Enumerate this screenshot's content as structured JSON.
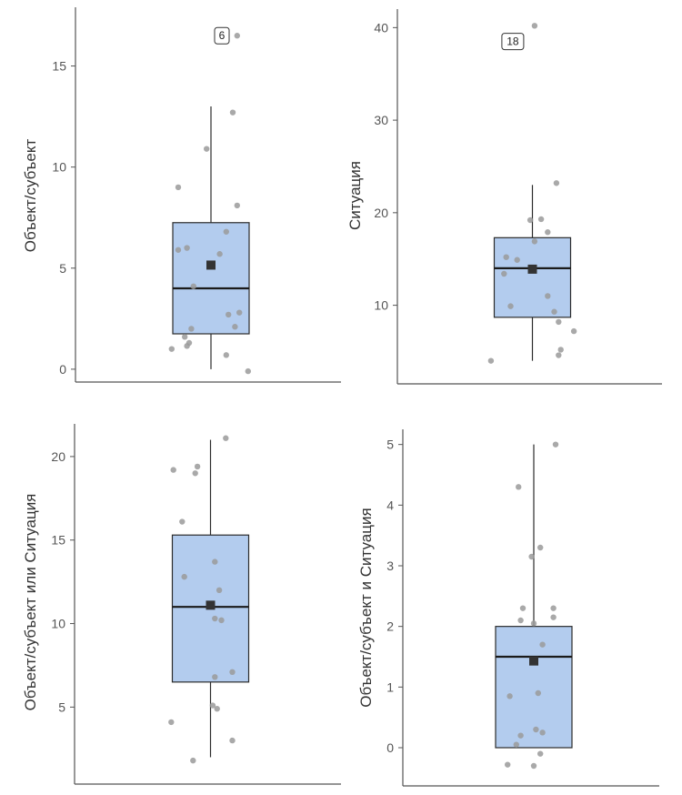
{
  "chart_data": [
    {
      "type": "box",
      "ylabel": "Объект/субъект",
      "ylim": [
        -0.5,
        17.5
      ],
      "yticks": [
        0,
        5,
        10,
        15
      ],
      "box": {
        "min": 0,
        "q1": 1.75,
        "median": 4,
        "mean": 5.15,
        "q3": 7.25,
        "max": 13
      },
      "points": [
        [
          0.6,
          16.5
        ],
        [
          0.5,
          12.7
        ],
        [
          -0.1,
          10.9
        ],
        [
          0.6,
          8.1
        ],
        [
          -0.75,
          9.0
        ],
        [
          0.35,
          6.8
        ],
        [
          -0.75,
          5.9
        ],
        [
          -0.55,
          6.0
        ],
        [
          0.2,
          5.7
        ],
        [
          -0.4,
          4.1
        ],
        [
          0.65,
          2.8
        ],
        [
          0.4,
          2.7
        ],
        [
          -0.45,
          2.0
        ],
        [
          0.55,
          2.1
        ],
        [
          -0.9,
          1.0
        ],
        [
          -0.5,
          1.3
        ],
        [
          -0.55,
          1.15
        ],
        [
          -0.6,
          1.6
        ],
        [
          0.35,
          0.7
        ],
        [
          0.85,
          -0.1
        ]
      ],
      "outlier_annotation": {
        "label": "6",
        "x": 0.25,
        "y": 16.5
      }
    },
    {
      "type": "box",
      "ylabel": "Ситуация",
      "ylim": [
        2,
        42
      ],
      "yticks": [
        10,
        20,
        30,
        40
      ],
      "box": {
        "min": 4,
        "q1": 8.7,
        "median": 14,
        "mean": 13.9,
        "q3": 17.3,
        "max": 23
      },
      "points": [
        [
          0.05,
          40.2
        ],
        [
          0.55,
          23.2
        ],
        [
          -0.05,
          19.2
        ],
        [
          0.2,
          19.3
        ],
        [
          0.35,
          17.9
        ],
        [
          0.05,
          16.9
        ],
        [
          -0.6,
          15.2
        ],
        [
          -0.35,
          14.9
        ],
        [
          -0.65,
          13.4
        ],
        [
          0.35,
          11.0
        ],
        [
          -0.5,
          9.9
        ],
        [
          0.5,
          9.3
        ],
        [
          0.6,
          8.2
        ],
        [
          0.95,
          7.2
        ],
        [
          0.65,
          5.2
        ],
        [
          0.6,
          4.6
        ],
        [
          -0.95,
          4.0
        ]
      ],
      "outlier_annotation": {
        "label": "18",
        "x": -0.45,
        "y": 38.5
      }
    },
    {
      "type": "box",
      "ylabel": "Объект/субъект или Ситуация",
      "ylim": [
        0.5,
        22.5
      ],
      "yticks": [
        5,
        10,
        15,
        20
      ],
      "box": {
        "min": 2,
        "q1": 6.5,
        "median": 11,
        "mean": 11.1,
        "q3": 15.3,
        "max": 21
      },
      "points": [
        [
          0.35,
          21.1
        ],
        [
          -0.85,
          19.2
        ],
        [
          -0.3,
          19.4
        ],
        [
          -0.35,
          19.0
        ],
        [
          -0.65,
          16.1
        ],
        [
          0.1,
          13.7
        ],
        [
          -0.6,
          12.8
        ],
        [
          0.2,
          12.0
        ],
        [
          0.1,
          10.3
        ],
        [
          0.25,
          10.2
        ],
        [
          0.5,
          7.1
        ],
        [
          0.1,
          6.8
        ],
        [
          0.05,
          5.1
        ],
        [
          0.15,
          4.9
        ],
        [
          -0.9,
          4.1
        ],
        [
          0.5,
          3.0
        ],
        [
          -0.4,
          1.8
        ]
      ],
      "outlier_annotation": null
    },
    {
      "type": "box",
      "ylabel": "Объект/субъект и Ситуация",
      "ylim": [
        -0.6,
        5.25
      ],
      "yticks": [
        0,
        1,
        2,
        3,
        4,
        5
      ],
      "box": {
        "min": 0,
        "q1": 0,
        "median": 1.5,
        "mean": 1.43,
        "q3": 2,
        "max": 5
      },
      "points": [
        [
          0.5,
          5.0
        ],
        [
          -0.35,
          4.3
        ],
        [
          0.15,
          3.3
        ],
        [
          -0.05,
          3.15
        ],
        [
          -0.25,
          2.3
        ],
        [
          0.45,
          2.3
        ],
        [
          0.45,
          2.15
        ],
        [
          -0.3,
          2.1
        ],
        [
          0.0,
          2.05
        ],
        [
          0.2,
          1.7
        ],
        [
          -0.55,
          0.85
        ],
        [
          0.1,
          0.9
        ],
        [
          -0.3,
          0.2
        ],
        [
          0.05,
          0.3
        ],
        [
          0.2,
          0.25
        ],
        [
          -0.4,
          0.05
        ],
        [
          0.15,
          -0.1
        ],
        [
          -0.6,
          -0.28
        ],
        [
          0.0,
          -0.3
        ]
      ],
      "outlier_annotation": null
    }
  ],
  "colors": {
    "box_fill": "#b3ccee",
    "box_stroke": "#2b2b2b",
    "point": "#9a9a9a",
    "mean_marker": "#333333",
    "axis": "#555555",
    "tick_text": "#555555"
  }
}
